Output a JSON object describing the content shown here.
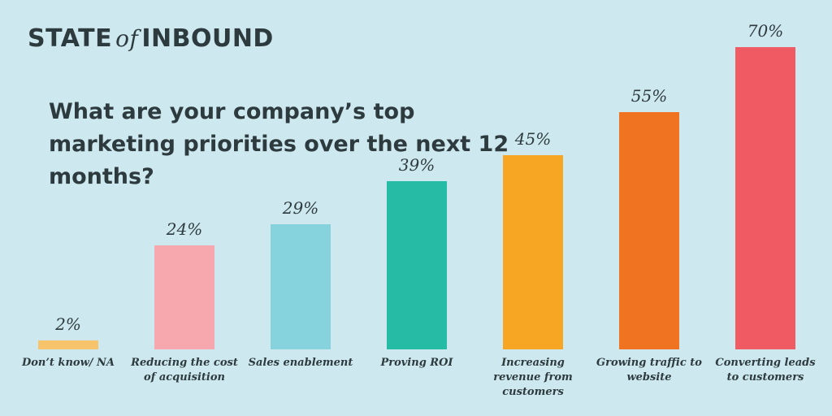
{
  "chart_data": {
    "type": "bar",
    "brand": [
      "STATE",
      "of",
      "INBOUND"
    ],
    "title": "What are your company’s top marketing priorities over the next 12 months?",
    "categories": [
      "Don’t know/ NA",
      "Reducing the cost of acquisition",
      "Sales enablement",
      "Proving ROI",
      "Increasing revenue from customers",
      "Growing traffic to website",
      "Converting leads to customers"
    ],
    "values": [
      2,
      24,
      29,
      39,
      45,
      55,
      70
    ],
    "value_labels": [
      "2%",
      "24%",
      "29%",
      "39%",
      "45%",
      "55%",
      "70%"
    ],
    "colors": [
      "#f7c46c",
      "#f7a8ae",
      "#86d3dd",
      "#26bba5",
      "#f6a623",
      "#f07322",
      "#ef5a63"
    ]
  }
}
